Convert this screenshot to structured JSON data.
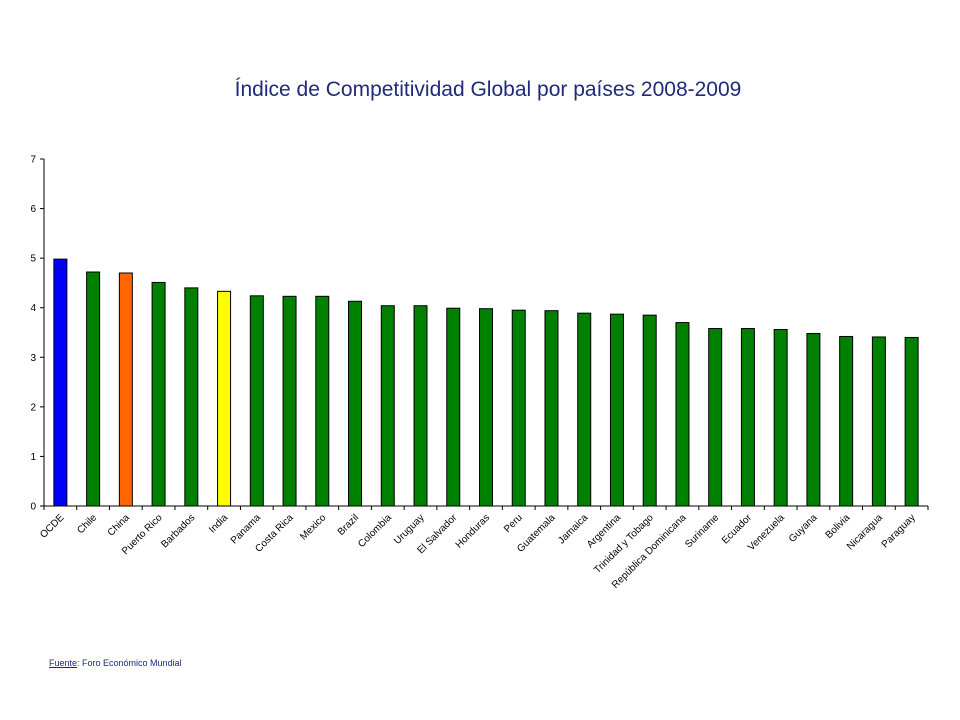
{
  "chart_data": {
    "type": "bar",
    "title": "Índice de Competitividad Global por países 2008-2009",
    "xlabel": "",
    "ylabel": "",
    "ylim": [
      0,
      7
    ],
    "yticks": [
      0,
      1,
      2,
      3,
      4,
      5,
      6,
      7
    ],
    "grid": false,
    "legend": "none",
    "categories": [
      "OCDE",
      "Chile",
      "China",
      "Puerto Rico",
      "Barbados",
      "India",
      "Panama",
      "Costa Rica",
      "Mexico",
      "Brazil",
      "Colombia",
      "Uruguay",
      "El Salvador",
      "Honduras",
      "Peru",
      "Guatemala",
      "Jamaica",
      "Argentina",
      "Trinidad y Tobago",
      "República Dominicana",
      "Suriname",
      "Ecuador",
      "Venezuela",
      "Guyana",
      "Bolivia",
      "Nicaragua",
      "Paraguay"
    ],
    "values": [
      4.98,
      4.72,
      4.7,
      4.51,
      4.4,
      4.33,
      4.24,
      4.23,
      4.23,
      4.13,
      4.04,
      4.04,
      3.99,
      3.98,
      3.95,
      3.94,
      3.89,
      3.87,
      3.85,
      3.7,
      3.58,
      3.58,
      3.56,
      3.48,
      3.42,
      3.41,
      3.4
    ],
    "colors": [
      "#0000ff",
      "#008000",
      "#ff6600",
      "#008000",
      "#008000",
      "#ffff00",
      "#008000",
      "#008000",
      "#008000",
      "#008000",
      "#008000",
      "#008000",
      "#008000",
      "#008000",
      "#008000",
      "#008000",
      "#008000",
      "#008000",
      "#008000",
      "#008000",
      "#008000",
      "#008000",
      "#008000",
      "#008000",
      "#008000",
      "#008000",
      "#008000"
    ]
  },
  "source": {
    "label": "Fuente",
    "text": ": Foro Económico Mundial"
  }
}
